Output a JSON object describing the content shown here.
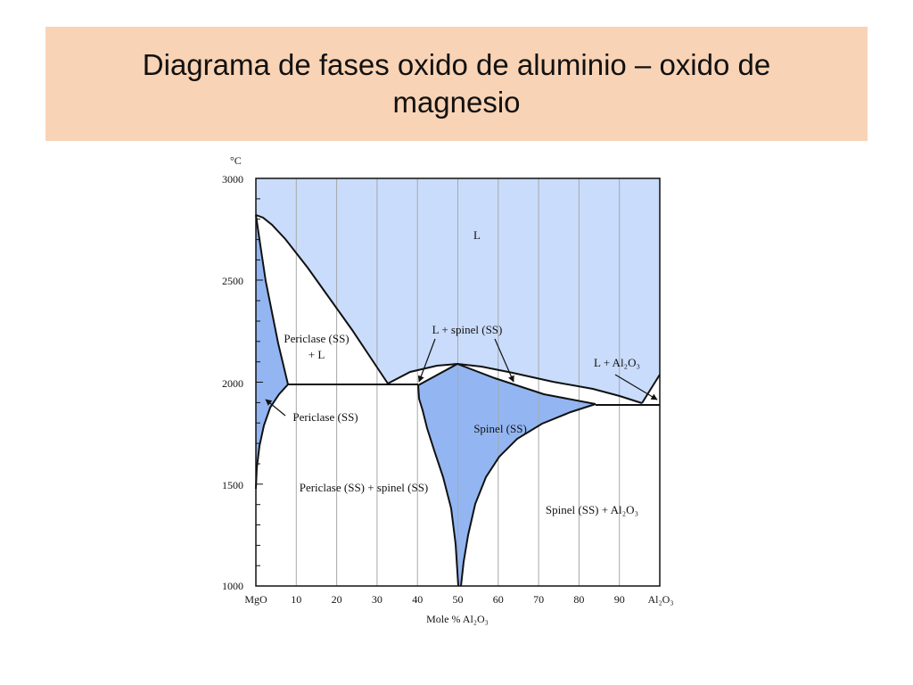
{
  "slide": {
    "title": "Diagrama de fases oxido de aluminio – oxido de magnesio"
  },
  "diagram": {
    "y_unit": "°C",
    "x_axis_label": "Mole % Al₂O₃",
    "x_left_end": "MgO",
    "x_right_end": "Al₂O₃",
    "x_ticks": [
      "10",
      "20",
      "30",
      "40",
      "50",
      "60",
      "70",
      "80",
      "90"
    ],
    "y_ticks": [
      "3000",
      "2500",
      "2000",
      "1500",
      "1000"
    ],
    "regions": {
      "liquid": "L",
      "periclase_liquid_1": "Periclase (SS)",
      "periclase_liquid_2": "+ L",
      "periclase_ss": "Periclase (SS)",
      "liquid_spinel": "L + spinel (SS)",
      "liquid_alumina": "L + Al₂O₃",
      "spinel_ss": "Spinel (SS)",
      "periclase_spinel": "Periclase (SS) + spinel (SS)",
      "spinel_alumina": "Spinel (SS) + Al₂O₃"
    },
    "colors": {
      "liquid_fill": "#c9dcfb",
      "solid_solution_fill": "#93b6f2",
      "two_phase_fill": "#ffffff",
      "line": "#111111",
      "grid": "#a8a8a8"
    }
  }
}
